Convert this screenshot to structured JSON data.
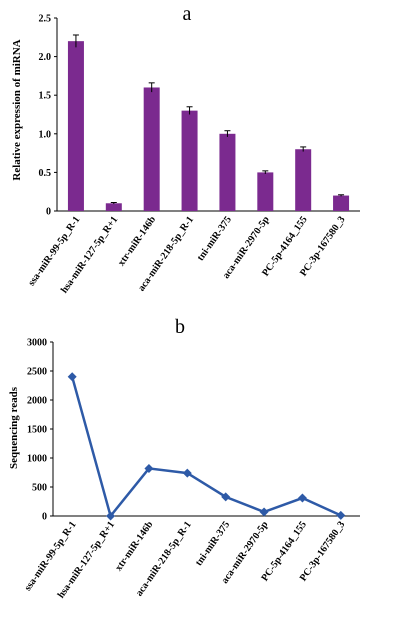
{
  "chart_data": [
    {
      "type": "bar",
      "title": "a",
      "ylabel": "Relative expression of miRNA",
      "categories": [
        "ssa-miR-99-5p_R-1",
        "hsa-miR-127-5p_R+1",
        "xtr-miR-146b",
        "aca-miR-218-5p_R-1",
        "tni-miR-375",
        "aca-miR-2970-5p",
        "PC-5p-4164_155",
        "PC-3p-167580_3"
      ],
      "values": [
        2.2,
        0.1,
        1.6,
        1.3,
        1.0,
        0.5,
        0.8,
        0.2
      ],
      "errors": [
        0.08,
        0.01,
        0.06,
        0.05,
        0.04,
        0.02,
        0.03,
        0.01
      ],
      "ylim": [
        0,
        2.5
      ],
      "yticks": [
        "0",
        "0.5",
        "1.0",
        "1.5",
        "2.0",
        "2.5"
      ],
      "color": "#7b2a8f"
    },
    {
      "type": "line",
      "title": "b",
      "ylabel": "Sequencing reads",
      "categories": [
        "ssa-miR-99-5p_R-1",
        "hsa-miR-127-5p_R+1",
        "xtr-miR-146b",
        "aca-miR-218-5p_R-1",
        "tni-miR-375",
        "aca-miR-2970-5p",
        "PC-5p-4164_155",
        "PC-3p-167580_3"
      ],
      "values": [
        2400,
        0,
        820,
        740,
        330,
        70,
        310,
        10
      ],
      "ylim": [
        0,
        3000
      ],
      "yticks": [
        "0",
        "500",
        "1000",
        "1500",
        "2000",
        "2500",
        "3000"
      ],
      "color": "#2e5aa7"
    }
  ]
}
